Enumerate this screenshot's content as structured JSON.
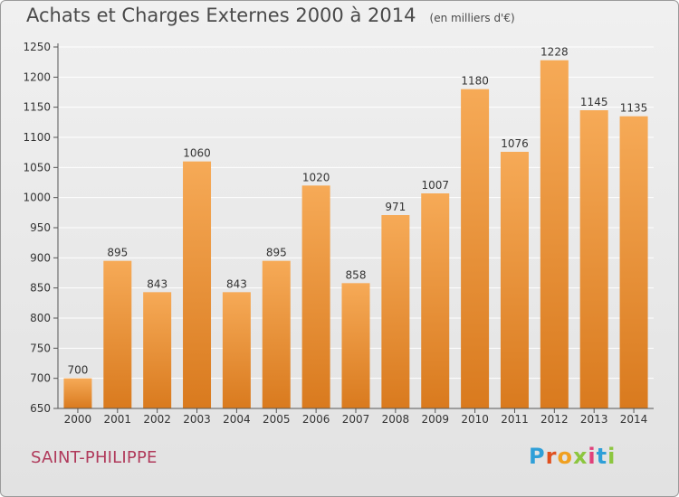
{
  "title": "Achats et Charges Externes 2000 à 2014",
  "subtitle": "(en milliers d'€)",
  "location": "SAINT-PHILIPPE",
  "logo": {
    "letters": [
      "P",
      "r",
      "o",
      "x",
      "i",
      "t",
      "i"
    ],
    "colors": [
      "#2f9fd8",
      "#e0501f",
      "#f0a020",
      "#8cc63f",
      "#e0407a",
      "#2f9fd8",
      "#8cc63f"
    ]
  },
  "colors": {
    "bar_top": "#f6aa57",
    "bar_bottom": "#d97a1e",
    "grid": "#ffffff",
    "text": "#333333"
  },
  "chart_data": {
    "type": "bar",
    "categories": [
      "2000",
      "2001",
      "2002",
      "2003",
      "2004",
      "2005",
      "2006",
      "2007",
      "2008",
      "2009",
      "2010",
      "2011",
      "2012",
      "2013",
      "2014"
    ],
    "values": [
      700,
      895,
      843,
      1060,
      843,
      895,
      1020,
      858,
      971,
      1007,
      1180,
      1076,
      1228,
      1145,
      1135
    ],
    "ylim": [
      650,
      1250
    ],
    "yticks": [
      650,
      700,
      750,
      800,
      850,
      900,
      950,
      1000,
      1050,
      1100,
      1150,
      1200,
      1250
    ],
    "grid": true
  }
}
